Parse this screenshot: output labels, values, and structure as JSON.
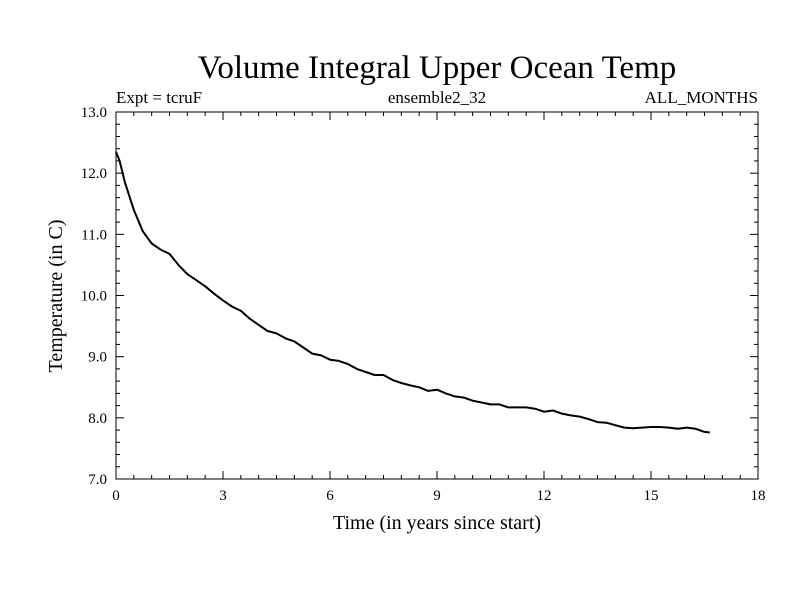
{
  "chart_data": {
    "type": "line",
    "title": "Volume Integral Upper Ocean Temp",
    "subtitle_left": "Expt = tcruF",
    "subtitle_center": "ensemble2_32",
    "subtitle_right": "ALL_MONTHS",
    "xlabel": "Time (in years since start)",
    "ylabel": "Temperature (in C)",
    "xlim": [
      0,
      18
    ],
    "ylim": [
      7.0,
      13.0
    ],
    "xticks": [
      "0",
      "3",
      "6",
      "9",
      "12",
      "15",
      "18"
    ],
    "xtick_values": [
      0,
      3,
      6,
      9,
      12,
      15,
      18
    ],
    "yticks": [
      "7.0",
      "8.0",
      "9.0",
      "10.0",
      "11.0",
      "12.0",
      "13.0"
    ],
    "ytick_values": [
      7,
      8,
      9,
      10,
      11,
      12,
      13
    ],
    "grid": false,
    "line_color": "#000000",
    "series": [
      {
        "x": [
          0,
          0.1,
          0.25,
          0.5,
          0.75,
          1.0,
          1.25,
          1.5,
          1.75,
          2.0,
          2.25,
          2.5,
          2.75,
          3.0,
          3.25,
          3.5,
          3.75,
          4.0,
          4.25,
          4.5,
          4.75,
          5.0,
          5.25,
          5.5,
          5.75,
          6.0,
          6.25,
          6.5,
          6.75,
          7.0,
          7.25,
          7.5,
          7.75,
          8.0,
          8.25,
          8.5,
          8.75,
          9.0,
          9.25,
          9.5,
          9.75,
          10.0,
          10.25,
          10.5,
          10.75,
          11.0,
          11.25,
          11.5,
          11.75,
          12.0,
          12.25,
          12.5,
          12.75,
          13.0,
          13.25,
          13.5,
          13.75,
          14.0,
          14.25,
          14.5,
          14.75,
          15.0,
          15.25,
          15.5,
          15.75,
          16.0,
          16.25,
          16.5,
          16.65
        ],
        "y": [
          12.35,
          12.2,
          11.85,
          11.4,
          11.05,
          10.85,
          10.75,
          10.68,
          10.5,
          10.35,
          10.25,
          10.15,
          10.03,
          9.92,
          9.82,
          9.75,
          9.62,
          9.52,
          9.42,
          9.38,
          9.3,
          9.25,
          9.15,
          9.05,
          9.02,
          8.95,
          8.93,
          8.88,
          8.8,
          8.75,
          8.7,
          8.7,
          8.62,
          8.57,
          8.53,
          8.5,
          8.44,
          8.46,
          8.4,
          8.35,
          8.33,
          8.28,
          8.25,
          8.22,
          8.22,
          8.17,
          8.17,
          8.17,
          8.15,
          8.1,
          8.12,
          8.07,
          8.04,
          8.02,
          7.98,
          7.93,
          7.92,
          7.88,
          7.84,
          7.83,
          7.84,
          7.85,
          7.85,
          7.84,
          7.82,
          7.84,
          7.82,
          7.77,
          7.76
        ]
      }
    ]
  }
}
